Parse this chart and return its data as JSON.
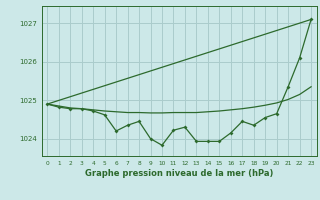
{
  "title": "Graphe pression niveau de la mer (hPa)",
  "background_color": "#cce8e8",
  "grid_color": "#aacccc",
  "line_color": "#2d6a2d",
  "x_ticks": [
    0,
    1,
    2,
    3,
    4,
    5,
    6,
    7,
    8,
    9,
    10,
    11,
    12,
    13,
    14,
    15,
    16,
    17,
    18,
    19,
    20,
    21,
    22,
    23
  ],
  "y_ticks": [
    1024,
    1025,
    1026,
    1027
  ],
  "ylim": [
    1023.55,
    1027.45
  ],
  "xlim": [
    -0.5,
    23.5
  ],
  "series1_y": [
    1024.9,
    1024.85,
    1024.8,
    1024.78,
    1024.75,
    1024.72,
    1024.7,
    1024.68,
    1024.68,
    1024.67,
    1024.67,
    1024.68,
    1024.68,
    1024.68,
    1024.7,
    1024.72,
    1024.75,
    1024.78,
    1024.82,
    1024.87,
    1024.93,
    1025.02,
    1025.15,
    1025.35
  ],
  "series2_y": [
    1024.9,
    1024.82,
    1024.78,
    1024.78,
    1024.72,
    1024.62,
    1024.2,
    1024.35,
    1024.45,
    1024.0,
    1023.83,
    1024.22,
    1024.3,
    1023.93,
    1023.93,
    1023.93,
    1024.15,
    1024.45,
    1024.35,
    1024.55,
    1024.65,
    1025.35,
    1026.1,
    1027.1
  ],
  "series3_x": [
    0,
    23
  ],
  "series3_y": [
    1024.9,
    1027.1
  ]
}
